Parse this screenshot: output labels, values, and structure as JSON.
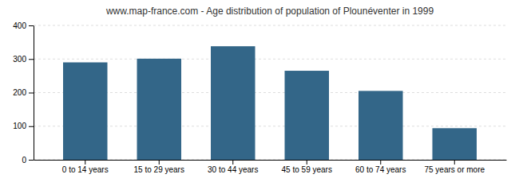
{
  "chart_data": {
    "type": "bar",
    "title": "www.map-france.com - Age distribution of population of Plounéventer in 1999",
    "categories": [
      "0 to 14 years",
      "15 to 29 years",
      "30 to 44 years",
      "45 to 59 years",
      "60 to 74 years",
      "75 years or more"
    ],
    "values": [
      290,
      301,
      338,
      265,
      205,
      94
    ],
    "color": "#336688",
    "ylim": [
      0,
      400
    ],
    "yticks": [
      0,
      100,
      200,
      300,
      400
    ],
    "grid": true
  }
}
